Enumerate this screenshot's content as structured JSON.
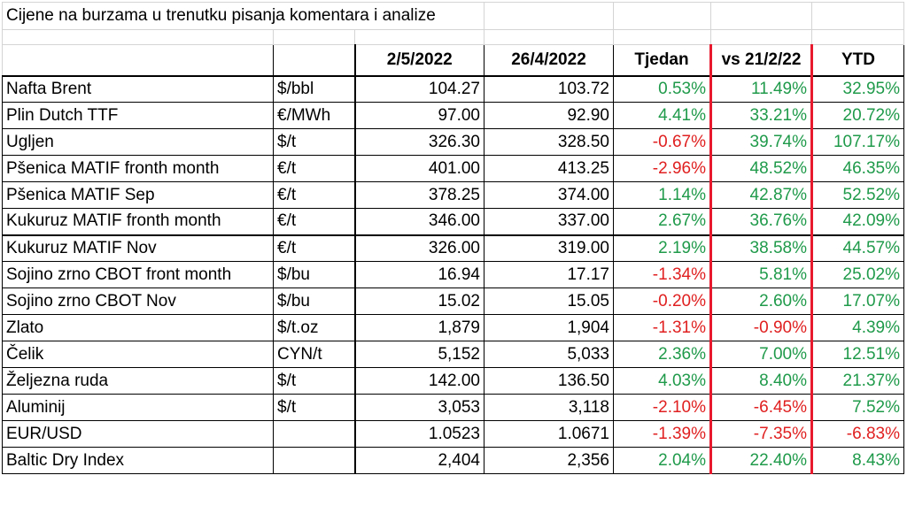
{
  "title": "Cijene na burzama u trenutku pisanja komentara i analize",
  "headers": [
    "",
    "",
    "2/5/2022",
    "26/4/2022",
    "Tjedan",
    "vs 21/2/22",
    "YTD"
  ],
  "rows": [
    {
      "name": "Nafta Brent",
      "unit": "$/bbl",
      "current": "104.27",
      "previous": "103.72",
      "week": "0.53%",
      "vs": "11.49%",
      "ytd": "32.95%",
      "week_sign": "pos",
      "vs_sign": "pos",
      "ytd_sign": "pos"
    },
    {
      "name": "Plin Dutch TTF",
      "unit": "€/MWh",
      "current": "97.00",
      "previous": "92.90",
      "week": "4.41%",
      "vs": "33.21%",
      "ytd": "20.72%",
      "week_sign": "pos",
      "vs_sign": "pos",
      "ytd_sign": "pos"
    },
    {
      "name": "Ugljen",
      "unit": "$/t",
      "current": "326.30",
      "previous": "328.50",
      "week": "-0.67%",
      "vs": "39.74%",
      "ytd": "107.17%",
      "week_sign": "neg",
      "vs_sign": "pos",
      "ytd_sign": "pos"
    },
    {
      "name": "Pšenica MATIF fronth month",
      "unit": "€/t",
      "current": "401.00",
      "previous": "413.25",
      "week": "-2.96%",
      "vs": "48.52%",
      "ytd": "46.35%",
      "week_sign": "neg",
      "vs_sign": "pos",
      "ytd_sign": "pos"
    },
    {
      "name": "Pšenica MATIF Sep",
      "unit": "€/t",
      "current": "378.25",
      "previous": "374.00",
      "week": "1.14%",
      "vs": "42.87%",
      "ytd": "52.52%",
      "week_sign": "pos",
      "vs_sign": "pos",
      "ytd_sign": "pos"
    },
    {
      "name": "Kukuruz MATIF fronth month",
      "unit": "€/t",
      "current": "346.00",
      "previous": "337.00",
      "week": "2.67%",
      "vs": "36.76%",
      "ytd": "42.09%",
      "week_sign": "pos",
      "vs_sign": "pos",
      "ytd_sign": "pos"
    },
    {
      "name": "Kukuruz MATIF Nov",
      "unit": "€/t",
      "current": "326.00",
      "previous": "319.00",
      "week": "2.19%",
      "vs": "38.58%",
      "ytd": "44.57%",
      "week_sign": "pos",
      "vs_sign": "pos",
      "ytd_sign": "pos"
    },
    {
      "name": "Sojino zrno CBOT front month",
      "unit": "$/bu",
      "current": "16.94",
      "previous": "17.17",
      "week": "-1.34%",
      "vs": "5.81%",
      "ytd": "25.02%",
      "week_sign": "neg",
      "vs_sign": "pos",
      "ytd_sign": "pos"
    },
    {
      "name": "Sojino zrno CBOT Nov",
      "unit": "$/bu",
      "current": "15.02",
      "previous": "15.05",
      "week": "-0.20%",
      "vs": "2.60%",
      "ytd": "17.07%",
      "week_sign": "neg",
      "vs_sign": "pos",
      "ytd_sign": "pos"
    },
    {
      "name": "Zlato",
      "unit": "$/t.oz",
      "current": "1,879",
      "previous": "1,904",
      "week": "-1.31%",
      "vs": "-0.90%",
      "ytd": "4.39%",
      "week_sign": "neg",
      "vs_sign": "neg",
      "ytd_sign": "pos"
    },
    {
      "name": "Čelik",
      "unit": "CYN/t",
      "current": "5,152",
      "previous": "5,033",
      "week": "2.36%",
      "vs": "7.00%",
      "ytd": "12.51%",
      "week_sign": "pos",
      "vs_sign": "pos",
      "ytd_sign": "pos"
    },
    {
      "name": "Željezna ruda",
      "unit": "$/t",
      "current": "142.00",
      "previous": "136.50",
      "week": "4.03%",
      "vs": "8.40%",
      "ytd": "21.37%",
      "week_sign": "pos",
      "vs_sign": "pos",
      "ytd_sign": "pos"
    },
    {
      "name": "Aluminij",
      "unit": "$/t",
      "current": "3,053",
      "previous": "3,118",
      "week": "-2.10%",
      "vs": "-6.45%",
      "ytd": "7.52%",
      "week_sign": "neg",
      "vs_sign": "neg",
      "ytd_sign": "pos"
    },
    {
      "name": "EUR/USD",
      "unit": "",
      "current": "1.0523",
      "previous": "1.0671",
      "week": "-1.39%",
      "vs": "-7.35%",
      "ytd": "-6.83%",
      "week_sign": "neg",
      "vs_sign": "neg",
      "ytd_sign": "neg"
    },
    {
      "name": "Baltic Dry Index",
      "unit": "",
      "current": "2,404",
      "previous": "2,356",
      "week": "2.04%",
      "vs": "22.40%",
      "ytd": "8.43%",
      "week_sign": "pos",
      "vs_sign": "pos",
      "ytd_sign": "pos"
    }
  ],
  "colors": {
    "positive": "#1f9a4a",
    "negative": "#e02020",
    "separator": "#e8192c"
  }
}
